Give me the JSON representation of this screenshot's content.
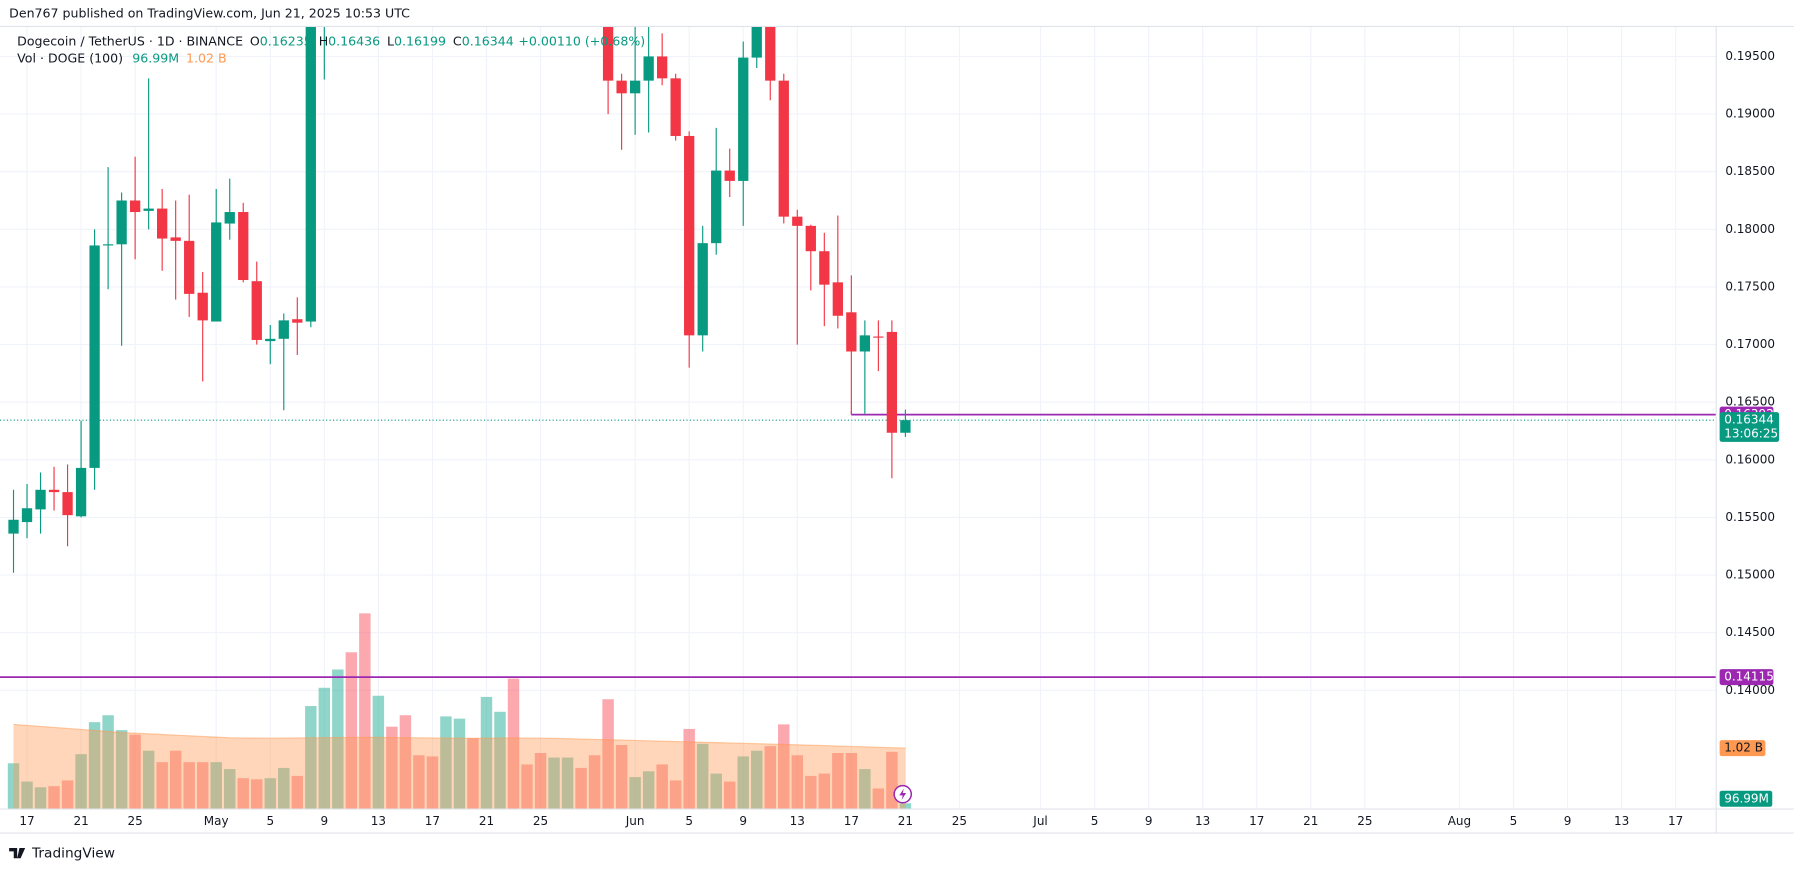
{
  "header": {
    "published": "Den767 published on TradingView.com, Jun 21, 2025 10:53 UTC",
    "symbol": "Dogecoin / TetherUS · 1D · BINANCE",
    "ohlc": [
      {
        "key": "O",
        "value": "0.16235"
      },
      {
        "key": "H",
        "value": "0.16436"
      },
      {
        "key": "L",
        "value": "0.16199"
      },
      {
        "key": "C",
        "value": "0.16344"
      }
    ],
    "change": "+0.00110 (+0.68%)",
    "volume_title": "Vol · DOGE (100)"
  },
  "chart_data": {
    "type": "candlestick",
    "x": [
      "04-16",
      "04-17",
      "04-18",
      "04-19",
      "04-20",
      "04-21",
      "04-22",
      "04-23",
      "04-24",
      "04-25",
      "04-26",
      "04-27",
      "04-28",
      "04-29",
      "04-30",
      "05-01",
      "05-02",
      "05-03",
      "05-04",
      "05-05",
      "05-06",
      "05-07",
      "05-08",
      "05-09",
      "05-10",
      "05-11",
      "05-12",
      "05-13",
      "05-14",
      "05-15",
      "05-16",
      "05-17",
      "05-18",
      "05-19",
      "05-20",
      "05-21",
      "05-22",
      "05-23",
      "05-24",
      "05-25",
      "05-26",
      "05-27",
      "05-28",
      "05-29",
      "05-30",
      "05-31",
      "06-01",
      "06-02",
      "06-03",
      "06-04",
      "06-05",
      "06-06",
      "06-07",
      "06-08",
      "06-09",
      "06-10",
      "06-11",
      "06-12",
      "06-13",
      "06-14",
      "06-15",
      "06-16",
      "06-17",
      "06-18",
      "06-19",
      "06-20",
      "06-21"
    ],
    "open": [
      0.1536,
      0.1546,
      0.1557,
      0.1574,
      0.1572,
      0.1551,
      0.1593,
      0.1786,
      0.1787,
      0.1825,
      0.1816,
      0.1818,
      0.1793,
      0.179,
      0.1745,
      0.172,
      0.1805,
      0.1815,
      0.1755,
      0.1703,
      0.1705,
      0.1722,
      0.172,
      0.205,
      null,
      null,
      null,
      null,
      null,
      null,
      null,
      null,
      null,
      null,
      null,
      null,
      null,
      null,
      null,
      null,
      null,
      null,
      null,
      null,
      0.2,
      0.1929,
      0.1918,
      0.1929,
      0.195,
      0.1931,
      0.1881,
      0.1708,
      0.1788,
      0.1851,
      0.1842,
      0.1949,
      0.199,
      0.1929,
      0.1811,
      0.1803,
      0.1781,
      0.1754,
      0.1728,
      0.1694,
      0.1707,
      0.1711,
      0.16235
    ],
    "high": [
      0.1574,
      0.1579,
      0.1589,
      0.1594,
      0.1596,
      0.1634,
      0.18,
      0.1854,
      0.1832,
      0.1863,
      0.1931,
      0.1835,
      0.1825,
      0.183,
      0.1763,
      0.1835,
      0.1844,
      0.1823,
      0.1772,
      0.1717,
      0.1727,
      0.1741,
      0.207,
      0.229,
      null,
      null,
      null,
      null,
      null,
      null,
      null,
      null,
      null,
      null,
      null,
      null,
      null,
      null,
      null,
      null,
      null,
      null,
      null,
      null,
      0.203,
      0.1935,
      0.199,
      0.199,
      0.197,
      0.1935,
      0.1885,
      0.1803,
      0.1888,
      0.187,
      0.1963,
      0.201,
      0.2,
      0.1935,
      0.1817,
      0.1804,
      0.1797,
      0.1812,
      0.176,
      0.1721,
      0.1721,
      0.1721,
      0.16436
    ],
    "low": [
      0.1502,
      0.1532,
      0.1536,
      0.1556,
      0.1525,
      0.155,
      0.1574,
      0.1748,
      0.1699,
      0.1774,
      0.18,
      0.1764,
      0.1739,
      0.1724,
      0.1668,
      0.172,
      0.1791,
      0.1754,
      0.17,
      0.1683,
      0.1643,
      0.1691,
      0.1715,
      0.193,
      null,
      null,
      null,
      null,
      null,
      null,
      null,
      null,
      null,
      null,
      null,
      null,
      null,
      null,
      null,
      null,
      null,
      null,
      null,
      null,
      0.19,
      0.1869,
      0.1882,
      0.1884,
      0.1925,
      0.1877,
      0.168,
      0.1694,
      0.1778,
      0.1828,
      0.1803,
      0.194,
      0.1912,
      0.1805,
      0.17,
      0.1747,
      0.1716,
      0.1714,
      0.164,
      0.164,
      0.1677,
      0.1584,
      0.16199
    ],
    "close": [
      0.1548,
      0.1558,
      0.1574,
      0.1572,
      0.1552,
      0.1593,
      0.1786,
      0.1787,
      0.1825,
      0.1815,
      0.1818,
      0.1792,
      0.179,
      0.1744,
      0.1721,
      0.1806,
      0.1815,
      0.1756,
      0.1704,
      0.1705,
      0.1721,
      0.1719,
      0.205,
      0.224,
      null,
      null,
      null,
      null,
      null,
      null,
      null,
      null,
      null,
      null,
      null,
      null,
      null,
      null,
      null,
      null,
      null,
      null,
      null,
      null,
      0.1929,
      0.1918,
      0.1929,
      0.195,
      0.1931,
      0.1881,
      0.1708,
      0.1788,
      0.1851,
      0.1842,
      0.1949,
      0.199,
      0.1929,
      0.1811,
      0.1803,
      0.1781,
      0.1752,
      0.1725,
      0.1694,
      0.1708,
      0.1706,
      0.16235,
      0.16344
    ],
    "up_color": "#089981",
    "down_color": "#f23645",
    "xlim": [
      "04-15",
      "08-20"
    ],
    "xticks": [
      {
        "value": "04-17",
        "label": "17"
      },
      {
        "value": "04-21",
        "label": "21"
      },
      {
        "value": "04-25",
        "label": "25"
      },
      {
        "value": "05-01",
        "label": "May"
      },
      {
        "value": "05-05",
        "label": "5"
      },
      {
        "value": "05-09",
        "label": "9"
      },
      {
        "value": "05-13",
        "label": "13"
      },
      {
        "value": "05-17",
        "label": "17"
      },
      {
        "value": "05-21",
        "label": "21"
      },
      {
        "value": "05-25",
        "label": "25"
      },
      {
        "value": "06-01",
        "label": "Jun"
      },
      {
        "value": "06-05",
        "label": "5"
      },
      {
        "value": "06-09",
        "label": "9"
      },
      {
        "value": "06-13",
        "label": "13"
      },
      {
        "value": "06-17",
        "label": "17"
      },
      {
        "value": "06-21",
        "label": "21"
      },
      {
        "value": "06-25",
        "label": "25"
      },
      {
        "value": "07-01",
        "label": "Jul"
      },
      {
        "value": "07-05",
        "label": "5"
      },
      {
        "value": "07-09",
        "label": "9"
      },
      {
        "value": "07-13",
        "label": "13"
      },
      {
        "value": "07-17",
        "label": "17"
      },
      {
        "value": "07-21",
        "label": "21"
      },
      {
        "value": "07-25",
        "label": "25"
      },
      {
        "value": "08-01",
        "label": "Aug"
      },
      {
        "value": "08-05",
        "label": "5"
      },
      {
        "value": "08-09",
        "label": "9"
      },
      {
        "value": "08-13",
        "label": "13"
      },
      {
        "value": "08-17",
        "label": "17"
      }
    ],
    "ylim": [
      0.1297,
      0.1976
    ],
    "yticks": [
      {
        "value": 0.14,
        "label": "0.14000"
      },
      {
        "value": 0.145,
        "label": "0.14500"
      },
      {
        "value": 0.15,
        "label": "0.15000"
      },
      {
        "value": 0.155,
        "label": "0.15500"
      },
      {
        "value": 0.16,
        "label": "0.16000"
      },
      {
        "value": 0.165,
        "label": "0.16500"
      },
      {
        "value": 0.17,
        "label": "0.17000"
      },
      {
        "value": 0.175,
        "label": "0.17500"
      },
      {
        "value": 0.18,
        "label": "0.18000"
      },
      {
        "value": 0.185,
        "label": "0.18500"
      },
      {
        "value": 0.19,
        "label": "0.19000"
      },
      {
        "value": 0.195,
        "label": "0.19500"
      }
    ],
    "grid": true,
    "volume": {
      "values": [
        766000000,
        460000000,
        364000000,
        383000000,
        479000000,
        919000000,
        1455000000,
        1570000000,
        1321000000,
        1245000000,
        977000000,
        785000000,
        977000000,
        785000000,
        785000000,
        785000000,
        670000000,
        517000000,
        498000000,
        517000000,
        689000000,
        555000000,
        1724000000,
        2030000000,
        2336000000,
        2624000000,
        3275000000,
        1896000000,
        1379000000,
        1570000000,
        900000000,
        881000000,
        1551000000,
        1513000000,
        1187000000,
        1877000000,
        1628000000,
        2183000000,
        747000000,
        938000000,
        862000000,
        862000000,
        689000000,
        900000000,
        1838000000,
        1072000000,
        536000000,
        632000000,
        747000000,
        479000000,
        1341000000,
        1092000000,
        594000000,
        460000000,
        881000000,
        977000000,
        1053000000,
        1417000000,
        900000000,
        555000000,
        594000000,
        938000000,
        938000000,
        670000000,
        345000000,
        958000000,
        96990000
      ],
      "colors": [
        "#22ab94",
        "#22ab94",
        "#22ab94",
        "#f7525f",
        "#f7525f",
        "#22ab94",
        "#22ab94",
        "#22ab94",
        "#22ab94",
        "#f7525f",
        "#22ab94",
        "#f7525f",
        "#f7525f",
        "#f7525f",
        "#f7525f",
        "#22ab94",
        "#22ab94",
        "#f7525f",
        "#f7525f",
        "#22ab94",
        "#22ab94",
        "#f7525f",
        "#22ab94",
        "#22ab94",
        "#22ab94",
        "#f7525f",
        "#f7525f",
        "#22ab94",
        "#f7525f",
        "#f7525f",
        "#f7525f",
        "#f7525f",
        "#22ab94",
        "#22ab94",
        "#f7525f",
        "#22ab94",
        "#22ab94",
        "#f7525f",
        "#f7525f",
        "#f7525f",
        "#22ab94",
        "#22ab94",
        "#f7525f",
        "#f7525f",
        "#f7525f",
        "#f7525f",
        "#22ab94",
        "#22ab94",
        "#f7525f",
        "#f7525f",
        "#f7525f",
        "#22ab94",
        "#22ab94",
        "#f7525f",
        "#22ab94",
        "#22ab94",
        "#f7525f",
        "#f7525f",
        "#f7525f",
        "#f7525f",
        "#f7525f",
        "#f7525f",
        "#f7525f",
        "#22ab94",
        "#f7525f",
        "#f7525f",
        "#22ab94"
      ],
      "value_label": "96.99M",
      "label_color": "#089981"
    },
    "volume_ma": {
      "values": [
        1417000000,
        1400000000,
        1383000000,
        1366000000,
        1349000000,
        1332000000,
        1315000000,
        1298000000,
        1281000000,
        1270000000,
        1259000000,
        1248000000,
        1237000000,
        1226000000,
        1215000000,
        1204000000,
        1193000000,
        1190000000,
        1188000000,
        1186000000,
        1188000000,
        1190000000,
        1192000000,
        1194000000,
        1196000000,
        1198000000,
        1200000000,
        1198000000,
        1196000000,
        1194000000,
        1192000000,
        1190000000,
        1188000000,
        1186000000,
        1184000000,
        1186000000,
        1188000000,
        1190000000,
        1188000000,
        1186000000,
        1184000000,
        1178000000,
        1172000000,
        1166000000,
        1160000000,
        1154000000,
        1148000000,
        1142000000,
        1136000000,
        1130000000,
        1124000000,
        1118000000,
        1112000000,
        1106000000,
        1100000000,
        1094000000,
        1088000000,
        1082000000,
        1076000000,
        1069000000,
        1062000000,
        1055000000,
        1048000000,
        1041000000,
        1034000000,
        1027000000,
        1020000000
      ],
      "value_label": "1.02 B",
      "color": "#ff9850"
    },
    "volume_lim": [
      0,
      3600000000
    ],
    "levels": [
      {
        "value": 0.16392,
        "color": "#9c27b0",
        "from": "06-17"
      },
      {
        "value": 0.14115,
        "color": "#9c27b0"
      }
    ],
    "last_price": {
      "value": 0.16344,
      "countdown": "13:06:25",
      "color": "#089981"
    }
  },
  "footer": {
    "brand": "TradingView"
  }
}
